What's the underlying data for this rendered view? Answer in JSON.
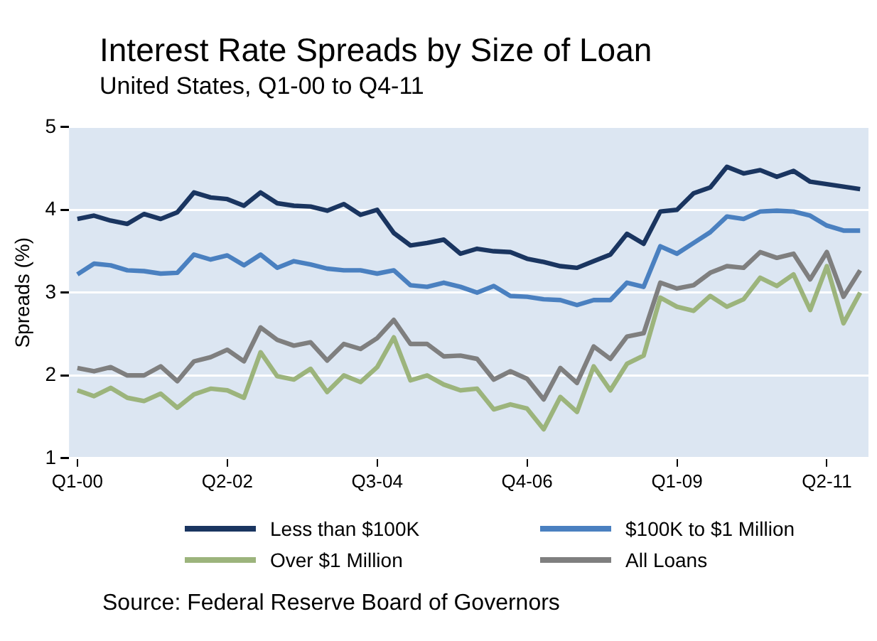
{
  "chart_data": {
    "type": "line",
    "title": "Interest Rate Spreads by Size of Loan",
    "subtitle": "United States, Q1-00 to Q4-11",
    "ylabel": "Spreads (%)",
    "annotations": [
      "Source: Federal Reserve Board of Governors"
    ],
    "categories": [
      "Q1-00",
      null,
      null,
      null,
      null,
      null,
      null,
      null,
      null,
      "Q2-02",
      null,
      null,
      null,
      null,
      null,
      null,
      null,
      null,
      "Q3-04",
      null,
      null,
      null,
      null,
      null,
      null,
      null,
      null,
      "Q4-06",
      null,
      null,
      null,
      null,
      null,
      null,
      null,
      null,
      "Q1-09",
      null,
      null,
      null,
      null,
      null,
      null,
      null,
      null,
      "Q2-11",
      null,
      null
    ],
    "ylim": [
      1,
      5
    ],
    "yticks": [
      1,
      2,
      3,
      4,
      5
    ],
    "grid": "y",
    "legend": "bottom",
    "marker": "none",
    "line_style": "solid",
    "series": [
      {
        "name": "Less than $100K",
        "color": "#1a3560",
        "values": [
          3.89,
          3.93,
          3.87,
          3.83,
          3.95,
          3.89,
          3.97,
          4.21,
          4.15,
          4.13,
          4.05,
          4.21,
          4.08,
          4.05,
          4.04,
          3.99,
          4.07,
          3.94,
          4.0,
          3.72,
          3.57,
          3.6,
          3.64,
          3.47,
          3.53,
          3.5,
          3.49,
          3.41,
          3.37,
          3.32,
          3.3,
          3.38,
          3.46,
          3.71,
          3.59,
          3.98,
          4.0,
          4.2,
          4.27,
          4.52,
          4.44,
          4.48,
          4.4,
          4.47,
          4.34,
          4.31,
          4.28,
          4.25
        ]
      },
      {
        "name": "$100K to $1 Million",
        "color": "#4a80c0",
        "values": [
          3.22,
          3.35,
          3.33,
          3.27,
          3.26,
          3.23,
          3.24,
          3.46,
          3.4,
          3.45,
          3.33,
          3.46,
          3.3,
          3.38,
          3.34,
          3.29,
          3.27,
          3.27,
          3.23,
          3.27,
          3.09,
          3.07,
          3.12,
          3.07,
          3.0,
          3.08,
          2.96,
          2.95,
          2.92,
          2.91,
          2.85,
          2.91,
          2.91,
          3.12,
          3.07,
          3.56,
          3.47,
          3.6,
          3.73,
          3.92,
          3.89,
          3.98,
          3.99,
          3.98,
          3.93,
          3.81,
          3.75,
          3.75
        ]
      },
      {
        "name": "Over $1 Million",
        "color": "#9cb47c",
        "values": [
          1.82,
          1.75,
          1.85,
          1.73,
          1.69,
          1.78,
          1.61,
          1.77,
          1.84,
          1.82,
          1.73,
          2.28,
          1.99,
          1.95,
          2.08,
          1.8,
          2.0,
          1.92,
          2.1,
          2.46,
          1.94,
          2.0,
          1.89,
          1.82,
          1.84,
          1.59,
          1.65,
          1.6,
          1.35,
          1.74,
          1.56,
          2.11,
          1.82,
          2.14,
          2.24,
          2.94,
          2.83,
          2.78,
          2.96,
          2.83,
          2.92,
          3.18,
          3.08,
          3.22,
          2.79,
          3.32,
          2.63,
          3.0
        ]
      },
      {
        "name": "All Loans",
        "color": "#7f7f7f",
        "values": [
          2.09,
          2.05,
          2.1,
          2.0,
          2.0,
          2.11,
          1.93,
          2.17,
          2.22,
          2.31,
          2.17,
          2.58,
          2.43,
          2.36,
          2.4,
          2.18,
          2.38,
          2.32,
          2.45,
          2.67,
          2.38,
          2.38,
          2.23,
          2.24,
          2.2,
          1.95,
          2.05,
          1.96,
          1.71,
          2.09,
          1.91,
          2.35,
          2.2,
          2.47,
          2.51,
          3.12,
          3.05,
          3.09,
          3.24,
          3.32,
          3.3,
          3.49,
          3.42,
          3.47,
          3.16,
          3.49,
          2.95,
          3.27
        ]
      }
    ]
  }
}
